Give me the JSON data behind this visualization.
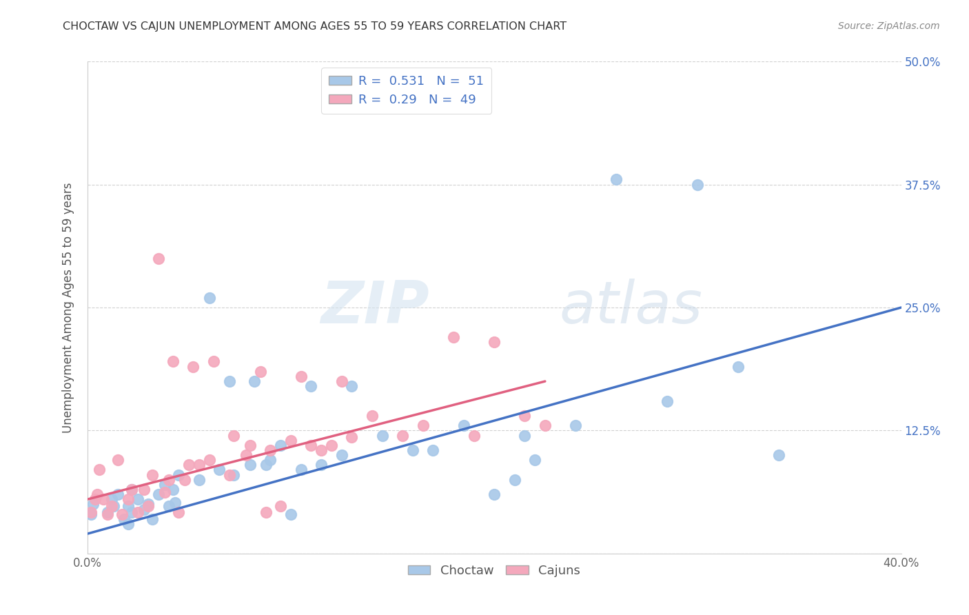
{
  "title": "CHOCTAW VS CAJUN UNEMPLOYMENT AMONG AGES 55 TO 59 YEARS CORRELATION CHART",
  "source": "Source: ZipAtlas.com",
  "ylabel": "Unemployment Among Ages 55 to 59 years",
  "xlim": [
    0.0,
    0.4
  ],
  "ylim": [
    0.0,
    0.5
  ],
  "xticks": [
    0.0,
    0.1,
    0.2,
    0.3,
    0.4
  ],
  "xticklabels": [
    "0.0%",
    "",
    "",
    "",
    "40.0%"
  ],
  "yticks": [
    0.0,
    0.125,
    0.25,
    0.375,
    0.5
  ],
  "ytick_right_labels": [
    "",
    "12.5%",
    "25.0%",
    "37.5%",
    "50.0%"
  ],
  "choctaw_color": "#a8c8e8",
  "cajun_color": "#f4a8bc",
  "choctaw_line_color": "#4472c4",
  "cajun_line_color": "#e06080",
  "choctaw_R": 0.531,
  "choctaw_N": 51,
  "cajun_R": 0.29,
  "cajun_N": 49,
  "watermark_zip": "ZIP",
  "watermark_atlas": "atlas",
  "choctaw_x": [
    0.002,
    0.003,
    0.01,
    0.012,
    0.013,
    0.015,
    0.018,
    0.02,
    0.02,
    0.022,
    0.022,
    0.025,
    0.028,
    0.03,
    0.032,
    0.035,
    0.038,
    0.04,
    0.042,
    0.043,
    0.045,
    0.055,
    0.06,
    0.065,
    0.07,
    0.072,
    0.08,
    0.082,
    0.088,
    0.09,
    0.095,
    0.1,
    0.105,
    0.11,
    0.115,
    0.125,
    0.13,
    0.145,
    0.16,
    0.17,
    0.185,
    0.2,
    0.21,
    0.215,
    0.22,
    0.24,
    0.26,
    0.285,
    0.3,
    0.32,
    0.34
  ],
  "choctaw_y": [
    0.04,
    0.05,
    0.042,
    0.055,
    0.048,
    0.06,
    0.035,
    0.03,
    0.048,
    0.042,
    0.065,
    0.055,
    0.045,
    0.05,
    0.035,
    0.06,
    0.07,
    0.048,
    0.065,
    0.052,
    0.08,
    0.075,
    0.26,
    0.085,
    0.175,
    0.08,
    0.09,
    0.175,
    0.09,
    0.095,
    0.11,
    0.04,
    0.085,
    0.17,
    0.09,
    0.1,
    0.17,
    0.12,
    0.105,
    0.105,
    0.13,
    0.06,
    0.075,
    0.12,
    0.095,
    0.13,
    0.38,
    0.155,
    0.375,
    0.19,
    0.1
  ],
  "cajun_x": [
    0.002,
    0.004,
    0.005,
    0.006,
    0.008,
    0.01,
    0.012,
    0.015,
    0.017,
    0.02,
    0.022,
    0.025,
    0.028,
    0.03,
    0.032,
    0.035,
    0.038,
    0.04,
    0.042,
    0.045,
    0.048,
    0.05,
    0.052,
    0.055,
    0.06,
    0.062,
    0.07,
    0.072,
    0.078,
    0.08,
    0.085,
    0.088,
    0.09,
    0.095,
    0.1,
    0.105,
    0.11,
    0.115,
    0.12,
    0.125,
    0.13,
    0.14,
    0.155,
    0.165,
    0.18,
    0.19,
    0.2,
    0.215,
    0.225
  ],
  "cajun_y": [
    0.042,
    0.055,
    0.06,
    0.085,
    0.055,
    0.04,
    0.048,
    0.095,
    0.04,
    0.055,
    0.065,
    0.042,
    0.065,
    0.048,
    0.08,
    0.3,
    0.062,
    0.075,
    0.195,
    0.042,
    0.075,
    0.09,
    0.19,
    0.09,
    0.095,
    0.195,
    0.08,
    0.12,
    0.1,
    0.11,
    0.185,
    0.042,
    0.105,
    0.048,
    0.115,
    0.18,
    0.11,
    0.105,
    0.11,
    0.175,
    0.118,
    0.14,
    0.12,
    0.13,
    0.22,
    0.12,
    0.215,
    0.14,
    0.13
  ],
  "choctaw_line_x0": 0.0,
  "choctaw_line_y0": 0.02,
  "choctaw_line_x1": 0.4,
  "choctaw_line_y1": 0.25,
  "cajun_line_x0": 0.0,
  "cajun_line_y0": 0.055,
  "cajun_line_x1": 0.225,
  "cajun_line_y1": 0.175
}
